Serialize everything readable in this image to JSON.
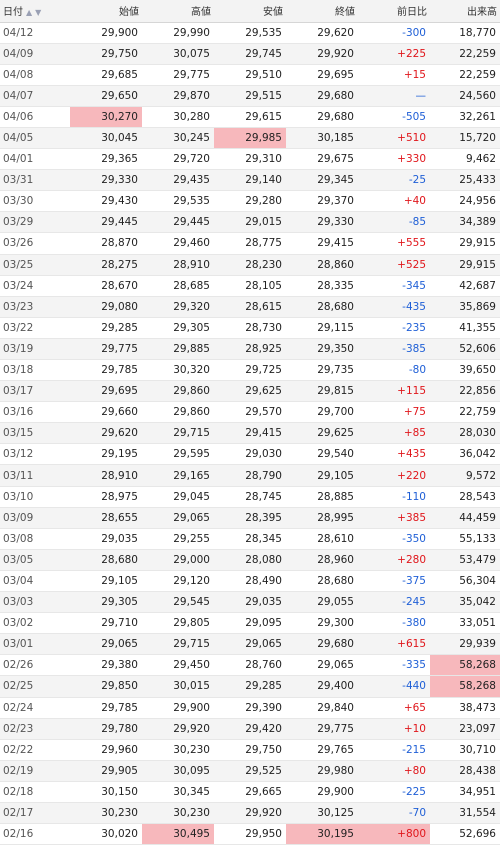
{
  "headers": {
    "date": "日付",
    "sort_up": "▲",
    "sort_down": "▼",
    "open": "始値",
    "high": "高値",
    "low": "安値",
    "close": "終値",
    "change": "前日比",
    "volume": "出来高"
  },
  "colors": {
    "up": "#e0161b",
    "down": "#1f5fd6",
    "highlight": "#f7b8bc"
  },
  "rows": [
    {
      "date": "04/12",
      "open": "29,900",
      "high": "29,990",
      "low": "29,535",
      "close": "29,620",
      "change": "-300",
      "volume": "18,770",
      "dir": "down",
      "hl": []
    },
    {
      "date": "04/09",
      "open": "29,750",
      "high": "30,075",
      "low": "29,745",
      "close": "29,920",
      "change": "+225",
      "volume": "22,259",
      "dir": "up",
      "hl": []
    },
    {
      "date": "04/08",
      "open": "29,685",
      "high": "29,775",
      "low": "29,510",
      "close": "29,695",
      "change": "+15",
      "volume": "22,259",
      "dir": "up",
      "hl": []
    },
    {
      "date": "04/07",
      "open": "29,650",
      "high": "29,870",
      "low": "29,515",
      "close": "29,680",
      "change": "—",
      "volume": "24,560",
      "dir": "flat",
      "hl": []
    },
    {
      "date": "04/06",
      "open": "30,270",
      "high": "30,280",
      "low": "29,615",
      "close": "29,680",
      "change": "-505",
      "volume": "32,261",
      "dir": "down",
      "hl": [
        "open"
      ]
    },
    {
      "date": "04/05",
      "open": "30,045",
      "high": "30,245",
      "low": "29,985",
      "close": "30,185",
      "change": "+510",
      "volume": "15,720",
      "dir": "up",
      "hl": [
        "low"
      ]
    },
    {
      "date": "04/01",
      "open": "29,365",
      "high": "29,720",
      "low": "29,310",
      "close": "29,675",
      "change": "+330",
      "volume": "9,462",
      "dir": "up",
      "hl": []
    },
    {
      "date": "03/31",
      "open": "29,330",
      "high": "29,435",
      "low": "29,140",
      "close": "29,345",
      "change": "-25",
      "volume": "25,433",
      "dir": "down",
      "hl": []
    },
    {
      "date": "03/30",
      "open": "29,430",
      "high": "29,535",
      "low": "29,280",
      "close": "29,370",
      "change": "+40",
      "volume": "24,956",
      "dir": "up",
      "hl": []
    },
    {
      "date": "03/29",
      "open": "29,445",
      "high": "29,445",
      "low": "29,015",
      "close": "29,330",
      "change": "-85",
      "volume": "34,389",
      "dir": "down",
      "hl": []
    },
    {
      "date": "03/26",
      "open": "28,870",
      "high": "29,460",
      "low": "28,775",
      "close": "29,415",
      "change": "+555",
      "volume": "29,915",
      "dir": "up",
      "hl": []
    },
    {
      "date": "03/25",
      "open": "28,275",
      "high": "28,910",
      "low": "28,230",
      "close": "28,860",
      "change": "+525",
      "volume": "29,915",
      "dir": "up",
      "hl": []
    },
    {
      "date": "03/24",
      "open": "28,670",
      "high": "28,685",
      "low": "28,105",
      "close": "28,335",
      "change": "-345",
      "volume": "42,687",
      "dir": "down",
      "hl": []
    },
    {
      "date": "03/23",
      "open": "29,080",
      "high": "29,320",
      "low": "28,615",
      "close": "28,680",
      "change": "-435",
      "volume": "35,869",
      "dir": "down",
      "hl": []
    },
    {
      "date": "03/22",
      "open": "29,285",
      "high": "29,305",
      "low": "28,730",
      "close": "29,115",
      "change": "-235",
      "volume": "41,355",
      "dir": "down",
      "hl": []
    },
    {
      "date": "03/19",
      "open": "29,775",
      "high": "29,885",
      "low": "28,925",
      "close": "29,350",
      "change": "-385",
      "volume": "52,606",
      "dir": "down",
      "hl": []
    },
    {
      "date": "03/18",
      "open": "29,785",
      "high": "30,320",
      "low": "29,725",
      "close": "29,735",
      "change": "-80",
      "volume": "39,650",
      "dir": "down",
      "hl": []
    },
    {
      "date": "03/17",
      "open": "29,695",
      "high": "29,860",
      "low": "29,625",
      "close": "29,815",
      "change": "+115",
      "volume": "22,856",
      "dir": "up",
      "hl": []
    },
    {
      "date": "03/16",
      "open": "29,660",
      "high": "29,860",
      "low": "29,570",
      "close": "29,700",
      "change": "+75",
      "volume": "22,759",
      "dir": "up",
      "hl": []
    },
    {
      "date": "03/15",
      "open": "29,620",
      "high": "29,715",
      "low": "29,415",
      "close": "29,625",
      "change": "+85",
      "volume": "28,030",
      "dir": "up",
      "hl": []
    },
    {
      "date": "03/12",
      "open": "29,195",
      "high": "29,595",
      "low": "29,030",
      "close": "29,540",
      "change": "+435",
      "volume": "36,042",
      "dir": "up",
      "hl": []
    },
    {
      "date": "03/11",
      "open": "28,910",
      "high": "29,165",
      "low": "28,790",
      "close": "29,105",
      "change": "+220",
      "volume": "9,572",
      "dir": "up",
      "hl": []
    },
    {
      "date": "03/10",
      "open": "28,975",
      "high": "29,045",
      "low": "28,745",
      "close": "28,885",
      "change": "-110",
      "volume": "28,543",
      "dir": "down",
      "hl": []
    },
    {
      "date": "03/09",
      "open": "28,655",
      "high": "29,065",
      "low": "28,395",
      "close": "28,995",
      "change": "+385",
      "volume": "44,459",
      "dir": "up",
      "hl": []
    },
    {
      "date": "03/08",
      "open": "29,035",
      "high": "29,255",
      "low": "28,345",
      "close": "28,610",
      "change": "-350",
      "volume": "55,133",
      "dir": "down",
      "hl": []
    },
    {
      "date": "03/05",
      "open": "28,680",
      "high": "29,000",
      "low": "28,080",
      "close": "28,960",
      "change": "+280",
      "volume": "53,479",
      "dir": "up",
      "hl": []
    },
    {
      "date": "03/04",
      "open": "29,105",
      "high": "29,120",
      "low": "28,490",
      "close": "28,680",
      "change": "-375",
      "volume": "56,304",
      "dir": "down",
      "hl": []
    },
    {
      "date": "03/03",
      "open": "29,305",
      "high": "29,545",
      "low": "29,035",
      "close": "29,055",
      "change": "-245",
      "volume": "35,042",
      "dir": "down",
      "hl": []
    },
    {
      "date": "03/02",
      "open": "29,710",
      "high": "29,805",
      "low": "29,095",
      "close": "29,300",
      "change": "-380",
      "volume": "33,051",
      "dir": "down",
      "hl": []
    },
    {
      "date": "03/01",
      "open": "29,065",
      "high": "29,715",
      "low": "29,065",
      "close": "29,680",
      "change": "+615",
      "volume": "29,939",
      "dir": "up",
      "hl": []
    },
    {
      "date": "02/26",
      "open": "29,380",
      "high": "29,450",
      "low": "28,760",
      "close": "29,065",
      "change": "-335",
      "volume": "58,268",
      "dir": "down",
      "hl": [
        "volume"
      ]
    },
    {
      "date": "02/25",
      "open": "29,850",
      "high": "30,015",
      "low": "29,285",
      "close": "29,400",
      "change": "-440",
      "volume": "58,268",
      "dir": "down",
      "hl": [
        "volume"
      ]
    },
    {
      "date": "02/24",
      "open": "29,785",
      "high": "29,900",
      "low": "29,390",
      "close": "29,840",
      "change": "+65",
      "volume": "38,473",
      "dir": "up",
      "hl": []
    },
    {
      "date": "02/23",
      "open": "29,780",
      "high": "29,920",
      "low": "29,420",
      "close": "29,775",
      "change": "+10",
      "volume": "23,097",
      "dir": "up",
      "hl": []
    },
    {
      "date": "02/22",
      "open": "29,960",
      "high": "30,230",
      "low": "29,750",
      "close": "29,765",
      "change": "-215",
      "volume": "30,710",
      "dir": "down",
      "hl": []
    },
    {
      "date": "02/19",
      "open": "29,905",
      "high": "30,095",
      "low": "29,525",
      "close": "29,980",
      "change": "+80",
      "volume": "28,438",
      "dir": "up",
      "hl": []
    },
    {
      "date": "02/18",
      "open": "30,150",
      "high": "30,345",
      "low": "29,665",
      "close": "29,900",
      "change": "-225",
      "volume": "34,951",
      "dir": "down",
      "hl": []
    },
    {
      "date": "02/17",
      "open": "30,230",
      "high": "30,230",
      "low": "29,920",
      "close": "30,125",
      "change": "-70",
      "volume": "31,554",
      "dir": "down",
      "hl": []
    },
    {
      "date": "02/16",
      "open": "30,020",
      "high": "30,495",
      "low": "29,950",
      "close": "30,195",
      "change": "+800",
      "volume": "52,696",
      "dir": "up",
      "hl": [
        "high",
        "close",
        "change"
      ]
    }
  ]
}
